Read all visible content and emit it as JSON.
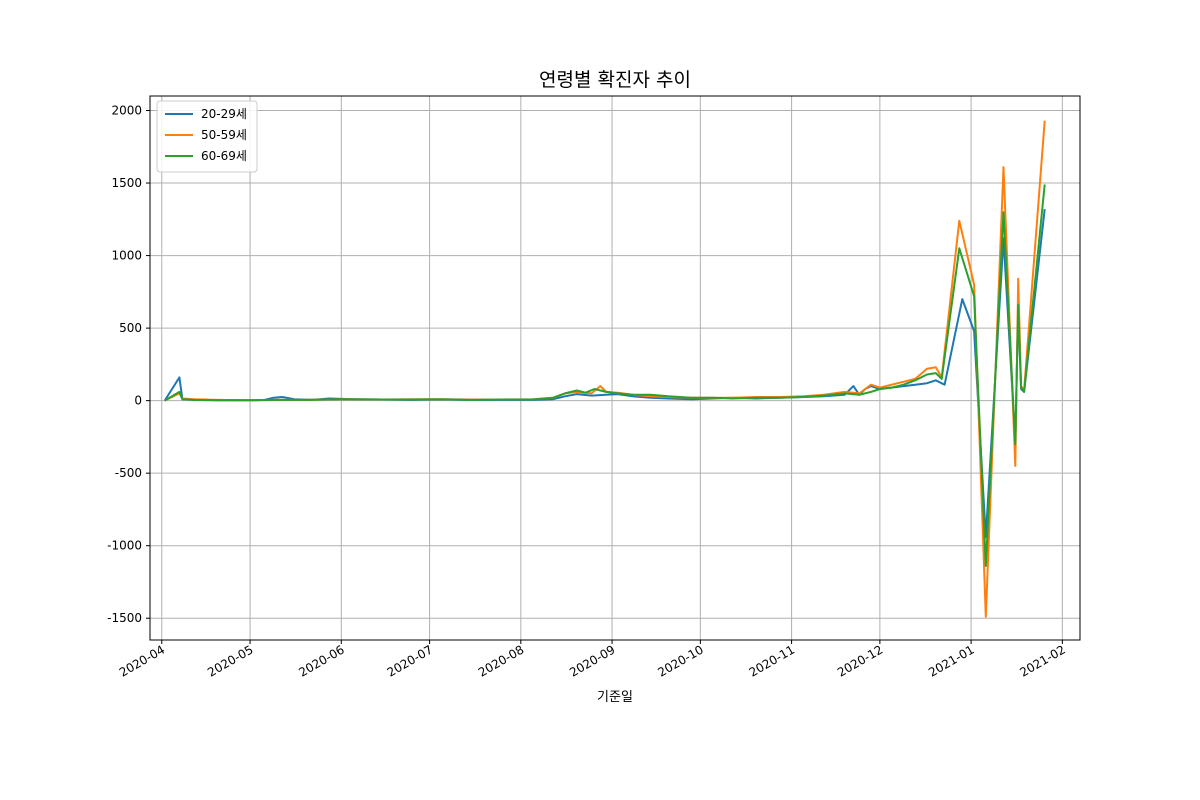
{
  "chart_data": {
    "type": "line",
    "title": "연령별 확진자 추이",
    "xlabel": "기준일",
    "ylabel": "",
    "x_type": "date",
    "xlim": [
      "2020-03-28",
      "2021-02-07"
    ],
    "ylim": [
      -1650,
      2100
    ],
    "x_ticks": [
      "2020-04",
      "2020-05",
      "2020-06",
      "2020-07",
      "2020-08",
      "2020-09",
      "2020-10",
      "2020-11",
      "2020-12",
      "2021-01",
      "2021-02"
    ],
    "y_ticks": [
      -1500,
      -1000,
      -500,
      0,
      500,
      1000,
      1500,
      2000
    ],
    "grid": true,
    "legend_position": "upper-left",
    "series": [
      {
        "name": "20-29세",
        "color": "#1f77b4",
        "points": [
          [
            "2020-04-02",
            0
          ],
          [
            "2020-04-07",
            160
          ],
          [
            "2020-04-08",
            10
          ],
          [
            "2020-04-12",
            5
          ],
          [
            "2020-04-20",
            3
          ],
          [
            "2020-05-01",
            2
          ],
          [
            "2020-05-06",
            5
          ],
          [
            "2020-05-09",
            20
          ],
          [
            "2020-05-12",
            25
          ],
          [
            "2020-05-16",
            10
          ],
          [
            "2020-05-22",
            5
          ],
          [
            "2020-05-28",
            15
          ],
          [
            "2020-06-05",
            10
          ],
          [
            "2020-06-15",
            8
          ],
          [
            "2020-06-25",
            5
          ],
          [
            "2020-07-05",
            8
          ],
          [
            "2020-07-15",
            5
          ],
          [
            "2020-07-25",
            5
          ],
          [
            "2020-08-05",
            5
          ],
          [
            "2020-08-12",
            10
          ],
          [
            "2020-08-16",
            30
          ],
          [
            "2020-08-20",
            45
          ],
          [
            "2020-08-25",
            35
          ],
          [
            "2020-08-30",
            40
          ],
          [
            "2020-09-03",
            45
          ],
          [
            "2020-09-08",
            30
          ],
          [
            "2020-09-14",
            20
          ],
          [
            "2020-09-20",
            15
          ],
          [
            "2020-09-28",
            10
          ],
          [
            "2020-10-05",
            15
          ],
          [
            "2020-10-12",
            20
          ],
          [
            "2020-10-20",
            15
          ],
          [
            "2020-10-28",
            20
          ],
          [
            "2020-11-05",
            25
          ],
          [
            "2020-11-12",
            30
          ],
          [
            "2020-11-19",
            40
          ],
          [
            "2020-11-22",
            100
          ],
          [
            "2020-11-24",
            40
          ],
          [
            "2020-11-26",
            80
          ],
          [
            "2020-11-28",
            100
          ],
          [
            "2020-12-01",
            80
          ],
          [
            "2020-12-05",
            90
          ],
          [
            "2020-12-09",
            100
          ],
          [
            "2020-12-13",
            110
          ],
          [
            "2020-12-17",
            120
          ],
          [
            "2020-12-20",
            140
          ],
          [
            "2020-12-23",
            110
          ],
          [
            "2020-12-29",
            700
          ],
          [
            "2021-01-02",
            480
          ],
          [
            "2021-01-06",
            -940
          ],
          [
            "2021-01-12",
            1120
          ],
          [
            "2021-01-16",
            -280
          ],
          [
            "2021-01-17",
            650
          ],
          [
            "2021-01-18",
            80
          ],
          [
            "2021-01-19",
            60
          ],
          [
            "2021-01-26",
            1320
          ]
        ]
      },
      {
        "name": "50-59세",
        "color": "#ff7f0e",
        "points": [
          [
            "2020-04-02",
            0
          ],
          [
            "2020-04-07",
            50
          ],
          [
            "2020-04-08",
            15
          ],
          [
            "2020-04-12",
            10
          ],
          [
            "2020-04-20",
            5
          ],
          [
            "2020-05-01",
            3
          ],
          [
            "2020-05-10",
            5
          ],
          [
            "2020-05-20",
            5
          ],
          [
            "2020-06-01",
            10
          ],
          [
            "2020-06-15",
            8
          ],
          [
            "2020-06-25",
            10
          ],
          [
            "2020-07-05",
            10
          ],
          [
            "2020-07-15",
            8
          ],
          [
            "2020-07-25",
            8
          ],
          [
            "2020-08-05",
            10
          ],
          [
            "2020-08-12",
            20
          ],
          [
            "2020-08-16",
            50
          ],
          [
            "2020-08-20",
            60
          ],
          [
            "2020-08-25",
            50
          ],
          [
            "2020-08-28",
            100
          ],
          [
            "2020-08-30",
            60
          ],
          [
            "2020-09-03",
            55
          ],
          [
            "2020-09-08",
            40
          ],
          [
            "2020-09-14",
            30
          ],
          [
            "2020-09-20",
            25
          ],
          [
            "2020-09-28",
            20
          ],
          [
            "2020-10-05",
            20
          ],
          [
            "2020-10-12",
            20
          ],
          [
            "2020-10-20",
            25
          ],
          [
            "2020-10-28",
            25
          ],
          [
            "2020-11-05",
            30
          ],
          [
            "2020-11-12",
            40
          ],
          [
            "2020-11-19",
            60
          ],
          [
            "2020-11-24",
            50
          ],
          [
            "2020-11-28",
            110
          ],
          [
            "2020-12-01",
            90
          ],
          [
            "2020-12-05",
            110
          ],
          [
            "2020-12-09",
            130
          ],
          [
            "2020-12-13",
            150
          ],
          [
            "2020-12-17",
            220
          ],
          [
            "2020-12-20",
            230
          ],
          [
            "2020-12-22",
            160
          ],
          [
            "2020-12-28",
            1240
          ],
          [
            "2021-01-02",
            800
          ],
          [
            "2021-01-06",
            -1490
          ],
          [
            "2021-01-12",
            1610
          ],
          [
            "2021-01-16",
            -450
          ],
          [
            "2021-01-17",
            840
          ],
          [
            "2021-01-18",
            100
          ],
          [
            "2021-01-19",
            70
          ],
          [
            "2021-01-26",
            1930
          ]
        ]
      },
      {
        "name": "60-69세",
        "color": "#2ca02c",
        "points": [
          [
            "2020-04-02",
            0
          ],
          [
            "2020-04-07",
            60
          ],
          [
            "2020-04-08",
            10
          ],
          [
            "2020-04-12",
            5
          ],
          [
            "2020-04-20",
            3
          ],
          [
            "2020-05-01",
            2
          ],
          [
            "2020-05-10",
            5
          ],
          [
            "2020-05-20",
            5
          ],
          [
            "2020-06-01",
            10
          ],
          [
            "2020-06-15",
            8
          ],
          [
            "2020-06-25",
            8
          ],
          [
            "2020-07-05",
            10
          ],
          [
            "2020-07-15",
            5
          ],
          [
            "2020-07-25",
            8
          ],
          [
            "2020-08-05",
            8
          ],
          [
            "2020-08-12",
            20
          ],
          [
            "2020-08-16",
            50
          ],
          [
            "2020-08-20",
            70
          ],
          [
            "2020-08-23",
            55
          ],
          [
            "2020-08-26",
            80
          ],
          [
            "2020-08-30",
            60
          ],
          [
            "2020-09-03",
            50
          ],
          [
            "2020-09-08",
            40
          ],
          [
            "2020-09-14",
            40
          ],
          [
            "2020-09-20",
            30
          ],
          [
            "2020-09-28",
            20
          ],
          [
            "2020-10-05",
            20
          ],
          [
            "2020-10-12",
            15
          ],
          [
            "2020-10-20",
            20
          ],
          [
            "2020-10-28",
            20
          ],
          [
            "2020-11-05",
            25
          ],
          [
            "2020-11-12",
            35
          ],
          [
            "2020-11-19",
            50
          ],
          [
            "2020-11-24",
            40
          ],
          [
            "2020-11-28",
            60
          ],
          [
            "2020-12-01",
            80
          ],
          [
            "2020-12-05",
            90
          ],
          [
            "2020-12-09",
            110
          ],
          [
            "2020-12-13",
            140
          ],
          [
            "2020-12-17",
            180
          ],
          [
            "2020-12-20",
            190
          ],
          [
            "2020-12-22",
            150
          ],
          [
            "2020-12-28",
            1050
          ],
          [
            "2021-01-02",
            720
          ],
          [
            "2021-01-06",
            -1140
          ],
          [
            "2021-01-12",
            1300
          ],
          [
            "2021-01-16",
            -300
          ],
          [
            "2021-01-17",
            660
          ],
          [
            "2021-01-18",
            90
          ],
          [
            "2021-01-19",
            60
          ],
          [
            "2021-01-26",
            1490
          ]
        ]
      }
    ]
  }
}
